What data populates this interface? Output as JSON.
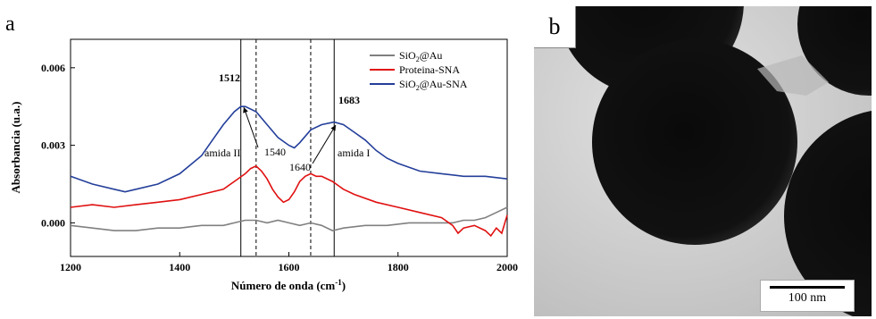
{
  "panel_a_label": "a",
  "panel_b_label": "b",
  "scale_bar_label": "100 nm",
  "colors": {
    "SiO2@Au": "#808080",
    "Proteina-SNA": "#e01010",
    "SiO2@Au-SNA": "#243f9a"
  },
  "chart_data": {
    "type": "line",
    "title": "",
    "xlabel": "Número de onda (cm-1)",
    "ylabel": "Absorbancia (u.a.)",
    "xlim": [
      1200,
      2000
    ],
    "ylim": [
      -0.0013,
      0.0071
    ],
    "xticks": [
      1200,
      1400,
      1600,
      1800,
      2000
    ],
    "yticks": [
      0.0,
      0.003,
      0.006
    ],
    "ytick_labels": [
      "0.000",
      "0.003",
      "0.006"
    ],
    "grid": false,
    "legend_position": "top-right",
    "series": [
      {
        "name": "SiO2@Au",
        "color": "#808080",
        "x": [
          1200,
          1240,
          1280,
          1320,
          1360,
          1400,
          1440,
          1480,
          1500,
          1520,
          1540,
          1560,
          1580,
          1600,
          1620,
          1640,
          1660,
          1680,
          1700,
          1740,
          1780,
          1820,
          1860,
          1900,
          1920,
          1940,
          1960,
          1980,
          2000
        ],
        "y": [
          -0.0001,
          -0.0002,
          -0.0003,
          -0.0003,
          -0.0002,
          -0.0002,
          -0.0001,
          -0.0001,
          0.0,
          0.0001,
          0.0001,
          0.0,
          0.0001,
          0.0,
          -0.0001,
          0.0,
          -0.0001,
          -0.0003,
          -0.0002,
          -0.0001,
          -0.0001,
          0.0,
          0.0,
          0.0,
          0.0001,
          0.0001,
          0.0002,
          0.0004,
          0.0006
        ]
      },
      {
        "name": "Proteina-SNA",
        "color": "#e01010",
        "x": [
          1200,
          1240,
          1280,
          1320,
          1360,
          1400,
          1440,
          1480,
          1500,
          1520,
          1530,
          1540,
          1550,
          1560,
          1570,
          1580,
          1590,
          1600,
          1610,
          1620,
          1630,
          1640,
          1650,
          1660,
          1680,
          1700,
          1720,
          1760,
          1800,
          1840,
          1880,
          1900,
          1910,
          1920,
          1940,
          1960,
          1970,
          1980,
          1990,
          2000
        ],
        "y": [
          0.0006,
          0.0007,
          0.0006,
          0.0007,
          0.0008,
          0.0009,
          0.0011,
          0.0013,
          0.0016,
          0.0019,
          0.0021,
          0.0022,
          0.002,
          0.0017,
          0.0013,
          0.001,
          0.0008,
          0.0009,
          0.0012,
          0.0016,
          0.0018,
          0.0019,
          0.0018,
          0.0018,
          0.0016,
          0.0013,
          0.0011,
          0.0008,
          0.0006,
          0.0004,
          0.0002,
          -0.0001,
          -0.0004,
          -0.0002,
          -0.0001,
          -0.0003,
          -0.0005,
          -0.0002,
          -0.0004,
          0.0003
        ]
      },
      {
        "name": "SiO2@Au-SNA",
        "color": "#243f9a",
        "x": [
          1200,
          1240,
          1280,
          1300,
          1320,
          1360,
          1400,
          1440,
          1460,
          1480,
          1500,
          1512,
          1520,
          1540,
          1560,
          1580,
          1600,
          1610,
          1620,
          1640,
          1660,
          1683,
          1700,
          1720,
          1740,
          1760,
          1780,
          1800,
          1840,
          1880,
          1920,
          1960,
          2000
        ],
        "y": [
          0.0018,
          0.0015,
          0.0013,
          0.0012,
          0.0013,
          0.0015,
          0.0019,
          0.0026,
          0.0032,
          0.0038,
          0.0043,
          0.0045,
          0.0045,
          0.0043,
          0.0038,
          0.0033,
          0.003,
          0.0029,
          0.0031,
          0.0036,
          0.0038,
          0.0039,
          0.0038,
          0.0035,
          0.0032,
          0.0028,
          0.0025,
          0.0023,
          0.002,
          0.0019,
          0.0018,
          0.0018,
          0.0017
        ]
      }
    ],
    "vertical_lines": [
      {
        "x": 1512,
        "style": "solid",
        "label": "1512"
      },
      {
        "x": 1540,
        "style": "dashed",
        "label": "1540"
      },
      {
        "x": 1640,
        "style": "dashed",
        "label": "1640"
      },
      {
        "x": 1683,
        "style": "solid",
        "label": "1683"
      }
    ],
    "annotations": [
      {
        "text": "amida II"
      },
      {
        "text": "amida I"
      }
    ]
  }
}
